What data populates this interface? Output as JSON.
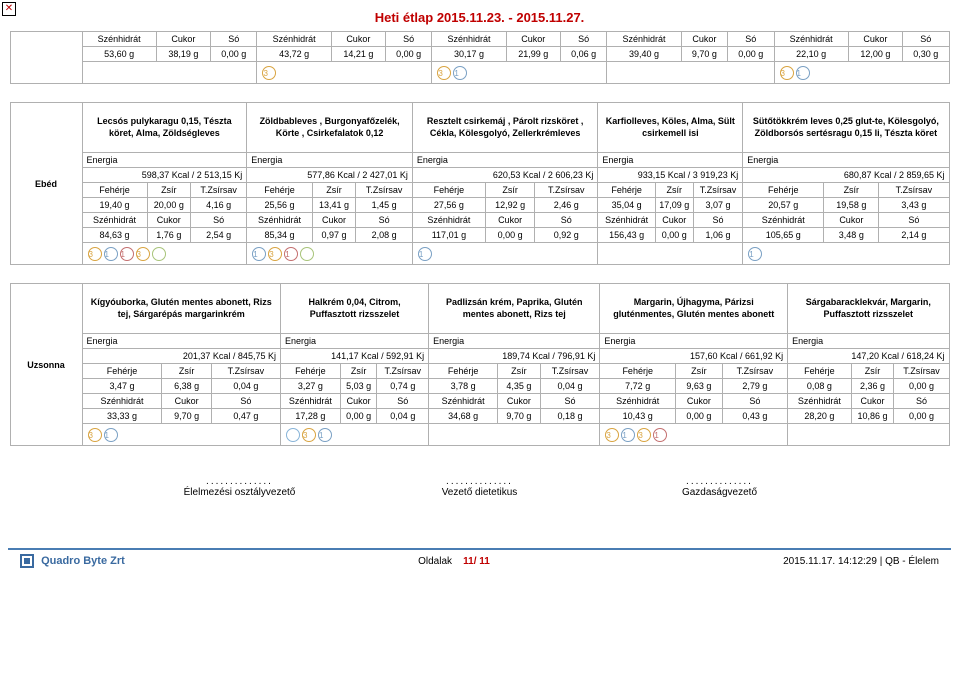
{
  "title": "Heti étlap 2015.11.23. - 2015.11.27.",
  "top_block": {
    "hdr": [
      "Szénhidrát",
      "Cukor",
      "Só"
    ],
    "vals": [
      [
        "53,60 g",
        "38,19 g",
        "0,00 g"
      ],
      [
        "43,72 g",
        "14,21 g",
        "0,00 g"
      ],
      [
        "30,17 g",
        "21,99 g",
        "0,06 g"
      ],
      [
        "39,40 g",
        "9,70 g",
        "0,00 g"
      ],
      [
        "22,10 g",
        "12,00 g",
        "0,30 g"
      ]
    ],
    "icons": [
      [],
      [
        {
          "n": "3",
          "c": "#d9a441"
        }
      ],
      [
        {
          "n": "3",
          "c": "#d9a441"
        },
        {
          "n": "1",
          "c": "#7aa0c4"
        }
      ],
      [],
      [
        {
          "n": "3",
          "c": "#d9a441"
        },
        {
          "n": "1",
          "c": "#7aa0c4"
        }
      ]
    ]
  },
  "ebed": {
    "label": "Ebéd",
    "dishes": [
      "Lecsós pulykaragu 0,15, Tészta köret, Alma, Zöldségleves",
      "Zöldbableves , Burgonyafőzelék, Körte , Csirkefalatok  0,12",
      "Resztelt csirkemáj , Párolt rizsköret , Cékla, Kölesgolyó, Zellerkrémleves",
      "Karfiolleves, Köles, Alma, Sült csirkemell isi",
      "Sütőtökkrém leves 0,25 glut-te, Kölesgolyó, Zöldborsós sertésragu 0,15 li, Tészta köret"
    ],
    "energia_lbl": "Energia",
    "kcal": [
      "598,37 Kcal / 2 513,15 Kj",
      "577,86 Kcal / 2 427,01 Kj",
      "620,53 Kcal / 2 606,23 Kj",
      "933,15 Kcal / 3 919,23 Kj",
      "680,87 Kcal / 2 859,65 Kj"
    ],
    "hdr2": [
      "Fehérje",
      "Zsír",
      "T.Zsírsav"
    ],
    "vals2": [
      [
        "19,40 g",
        "20,00 g",
        "4,16 g"
      ],
      [
        "25,56 g",
        "13,41 g",
        "1,45 g"
      ],
      [
        "27,56 g",
        "12,92 g",
        "2,46 g"
      ],
      [
        "35,04 g",
        "17,09 g",
        "3,07 g"
      ],
      [
        "20,57 g",
        "19,58 g",
        "3,43 g"
      ]
    ],
    "hdr3": [
      "Szénhidrát",
      "Cukor",
      "Só"
    ],
    "vals3": [
      [
        "84,63 g",
        "1,76 g",
        "2,54 g"
      ],
      [
        "85,34 g",
        "0,97 g",
        "2,08 g"
      ],
      [
        "117,01 g",
        "0,00 g",
        "0,92 g"
      ],
      [
        "156,43 g",
        "0,00 g",
        "1,06 g"
      ],
      [
        "105,65 g",
        "3,48 g",
        "2,14 g"
      ]
    ],
    "icons": [
      [
        {
          "n": "3",
          "c": "#d9a441"
        },
        {
          "n": "1",
          "c": "#7aa0c4"
        },
        {
          "n": "1",
          "c": "#c46f6f"
        },
        {
          "n": "3",
          "c": "#d9a441"
        },
        {
          "n": "",
          "c": "#a8c47a"
        }
      ],
      [
        {
          "n": "1",
          "c": "#7aa0c4"
        },
        {
          "n": "3",
          "c": "#d9a441"
        },
        {
          "n": "1",
          "c": "#c46f6f"
        },
        {
          "n": "",
          "c": "#a8c47a"
        }
      ],
      [
        {
          "n": "1",
          "c": "#7aa0c4"
        }
      ],
      [],
      [
        {
          "n": "1",
          "c": "#7aa0c4"
        }
      ]
    ]
  },
  "uzsonna": {
    "label": "Uzsonna",
    "dishes": [
      "Kígyóuborka, Glutén mentes abonett, Rizs tej, Sárgarépás margarinkrém",
      "Halkrém 0,04, Citrom, Puffasztott rizsszelet",
      "Padlizsán krém, Paprika, Glutén mentes abonett, Rizs tej",
      "Margarin, Újhagyma, Párizsi gluténmentes, Glutén mentes abonett",
      "Sárgabaracklekvár, Margarin, Puffasztott rizsszelet"
    ],
    "energia_lbl": "Energia",
    "kcal": [
      "201,37 Kcal / 845,75 Kj",
      "141,17 Kcal / 592,91 Kj",
      "189,74 Kcal / 796,91 Kj",
      "157,60 Kcal / 661,92 Kj",
      "147,20 Kcal / 618,24 Kj"
    ],
    "hdr2": [
      "Fehérje",
      "Zsír",
      "T.Zsírsav"
    ],
    "vals2": [
      [
        "3,47 g",
        "6,38 g",
        "0,04 g"
      ],
      [
        "3,27 g",
        "5,03 g",
        "0,74 g"
      ],
      [
        "3,78 g",
        "4,35 g",
        "0,04 g"
      ],
      [
        "7,72 g",
        "9,63 g",
        "2,79 g"
      ],
      [
        "0,08 g",
        "2,36 g",
        "0,00 g"
      ]
    ],
    "hdr3": [
      "Szénhidrát",
      "Cukor",
      "Só"
    ],
    "vals3": [
      [
        "33,33 g",
        "9,70 g",
        "0,47 g"
      ],
      [
        "17,28 g",
        "0,00 g",
        "0,04 g"
      ],
      [
        "34,68 g",
        "9,70 g",
        "0,18 g"
      ],
      [
        "10,43 g",
        "0,00 g",
        "0,43 g"
      ],
      [
        "28,20 g",
        "10,86 g",
        "0,00 g"
      ]
    ],
    "icons": [
      [
        {
          "n": "3",
          "c": "#d9a441"
        },
        {
          "n": "1",
          "c": "#7aa0c4"
        }
      ],
      [
        {
          "n": "",
          "c": "#88b4d8"
        },
        {
          "n": "3",
          "c": "#d9a441"
        },
        {
          "n": "1",
          "c": "#7aa0c4"
        }
      ],
      [],
      [
        {
          "n": "3",
          "c": "#d9a441"
        },
        {
          "n": "1",
          "c": "#7aa0c4"
        },
        {
          "n": "3",
          "c": "#d9a441"
        },
        {
          "n": "1",
          "c": "#c46f6f"
        }
      ],
      []
    ]
  },
  "signatures": [
    "Élelmezési osztályvezető",
    "Vezető dietetikus",
    "Gazdaságvezető"
  ],
  "footer": {
    "company": "Quadro Byte Zrt",
    "pages_lbl": "Oldalak",
    "page": "11/ 11",
    "right": "2015.11.17.  14:12:29 | QB - Élelem"
  }
}
